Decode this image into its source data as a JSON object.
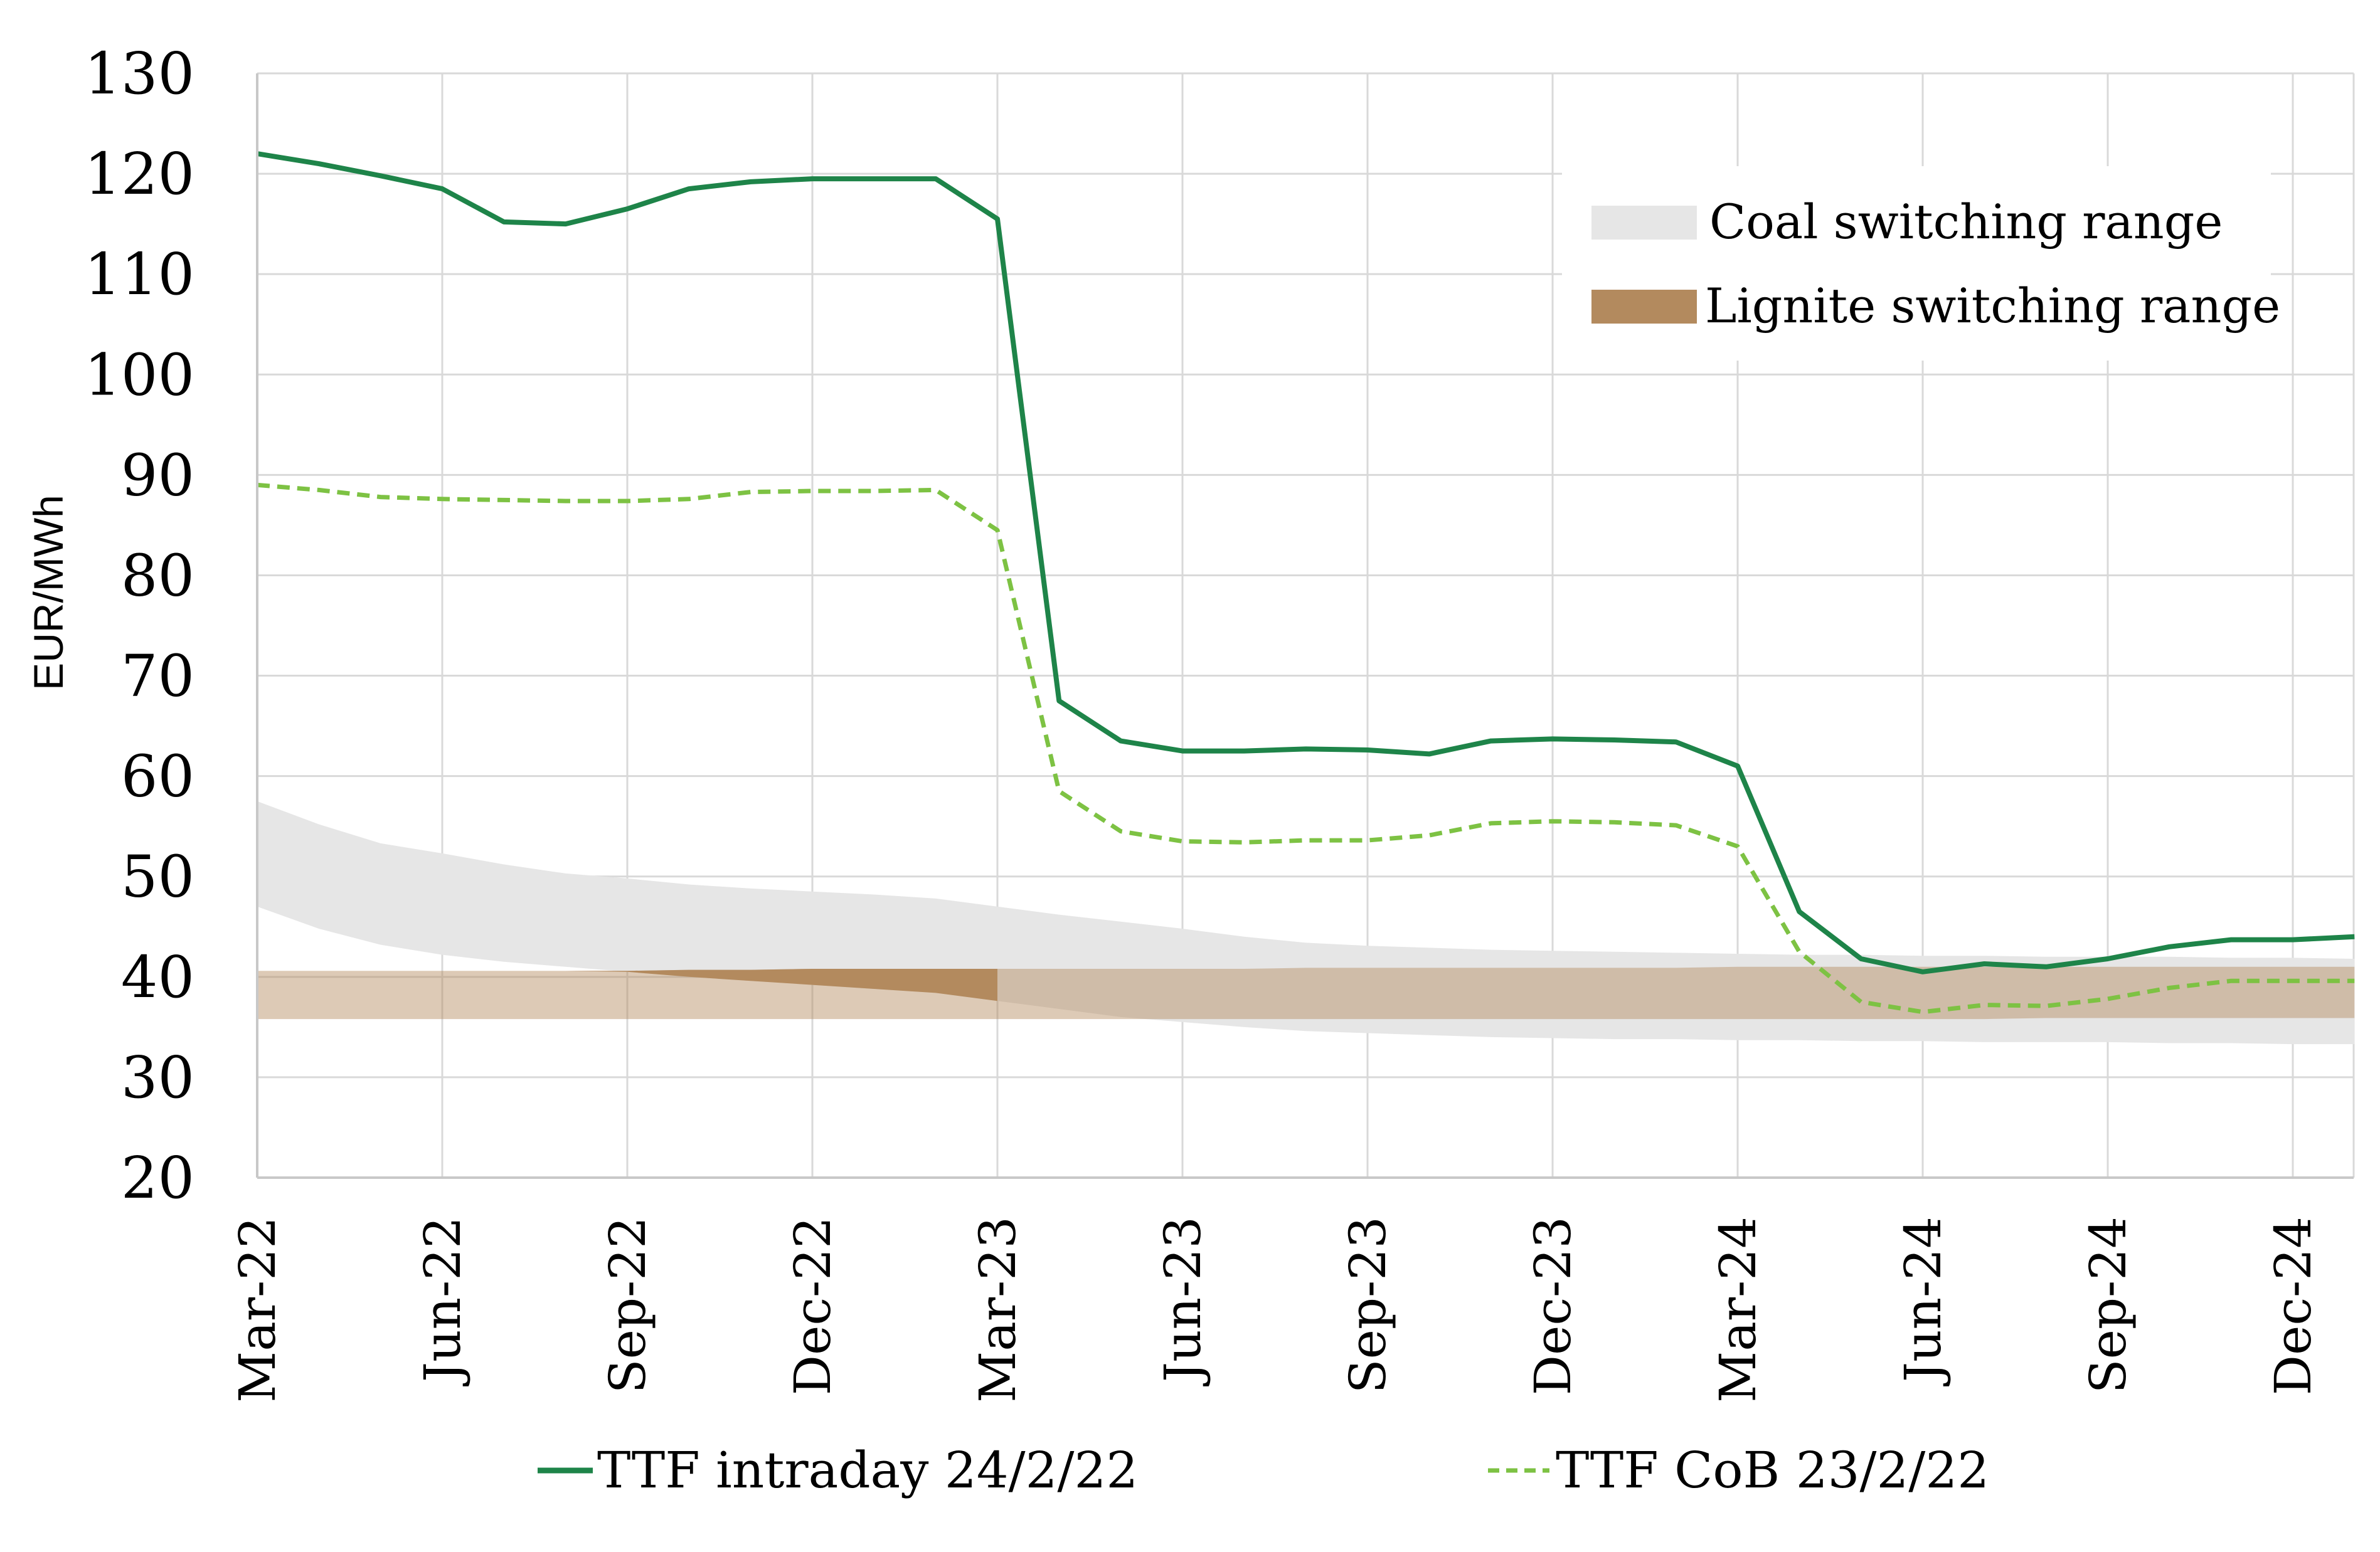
{
  "chart_data": {
    "type": "line",
    "title": "",
    "xlabel": "",
    "ylabel": "EUR/MWh",
    "ylim": [
      20,
      130
    ],
    "y_ticks": [
      "20",
      "30",
      "40",
      "50",
      "60",
      "70",
      "80",
      "90",
      "100",
      "110",
      "120",
      "130"
    ],
    "x_ticks": [
      "Mar-22",
      "Jun-22",
      "Sep-22",
      "Dec-22",
      "Mar-23",
      "Jun-23",
      "Sep-23",
      "Dec-23",
      "Mar-24",
      "Jun-24",
      "Sep-24",
      "Dec-24"
    ],
    "grid": true,
    "series": [
      {
        "name": "TTF intraday 24/2/22",
        "style": "solid",
        "color": "#1e8449",
        "values": [
          122.0,
          121.0,
          119.8,
          118.5,
          115.2,
          115.0,
          116.5,
          118.5,
          119.2,
          119.5,
          119.5,
          119.5,
          115.5,
          67.5,
          63.5,
          62.5,
          62.5,
          62.7,
          62.6,
          62.2,
          63.5,
          63.7,
          63.6,
          63.4,
          61.0,
          46.5,
          41.8,
          40.5,
          41.3,
          41.0,
          41.8,
          43.0,
          43.7,
          43.7,
          44.0
        ]
      },
      {
        "name": "TTF CoB 23/2/22",
        "style": "dashed",
        "color": "#7dc243",
        "values": [
          89.0,
          88.5,
          87.8,
          87.6,
          87.5,
          87.4,
          87.4,
          87.6,
          88.3,
          88.4,
          88.4,
          88.5,
          84.5,
          58.5,
          54.5,
          53.5,
          53.4,
          53.6,
          53.6,
          54.1,
          55.3,
          55.5,
          55.4,
          55.1,
          53.0,
          42.5,
          37.5,
          36.5,
          37.2,
          37.1,
          37.8,
          38.9,
          39.6,
          39.6,
          39.6
        ]
      }
    ],
    "bands": [
      {
        "name": "Coal switching range",
        "color": "#e6e6e6",
        "upper": [
          57.5,
          55.2,
          53.3,
          52.3,
          51.2,
          50.3,
          49.8,
          49.2,
          48.8,
          48.5,
          48.2,
          47.8,
          47.0,
          46.2,
          45.5,
          44.8,
          44.0,
          43.4,
          43.1,
          42.9,
          42.7,
          42.6,
          42.5,
          42.4,
          42.3,
          42.2,
          42.2,
          42.1,
          42.1,
          42.0,
          42.0,
          42.0,
          41.9,
          41.9,
          41.8
        ],
        "lower": [
          47.0,
          44.8,
          43.2,
          42.2,
          41.5,
          41.0,
          40.5,
          40.0,
          39.6,
          39.2,
          38.8,
          38.4,
          37.6,
          36.8,
          36.0,
          35.5,
          35.0,
          34.6,
          34.4,
          34.2,
          34.0,
          33.9,
          33.8,
          33.8,
          33.7,
          33.7,
          33.6,
          33.6,
          33.5,
          33.5,
          33.5,
          33.4,
          33.4,
          33.3,
          33.3
        ]
      },
      {
        "name": "Lignite switching range",
        "color": "#b38a5e",
        "upper": [
          40.6,
          40.6,
          40.6,
          40.6,
          40.6,
          40.6,
          40.6,
          40.7,
          40.7,
          40.8,
          40.8,
          40.8,
          40.8,
          40.8,
          40.8,
          40.8,
          40.8,
          40.9,
          40.9,
          40.9,
          40.9,
          40.9,
          40.9,
          40.9,
          41.0,
          41.0,
          41.0,
          41.0,
          41.0,
          41.0,
          41.0,
          41.0,
          41.0,
          41.0,
          41.0
        ],
        "lower": [
          35.8,
          35.8,
          35.8,
          35.8,
          35.8,
          35.8,
          35.8,
          35.8,
          35.8,
          35.8,
          35.8,
          35.8,
          35.8,
          35.8,
          35.8,
          35.8,
          35.8,
          35.8,
          35.8,
          35.8,
          35.8,
          35.8,
          35.8,
          35.8,
          35.8,
          35.8,
          35.8,
          35.8,
          35.8,
          35.9,
          35.9,
          35.9,
          35.9,
          35.9,
          35.9
        ]
      }
    ],
    "legend_top": [
      "Coal switching range",
      "Lignite switching range"
    ],
    "legend_bottom": [
      "TTF intraday 24/2/22",
      "TTF CoB 23/2/22"
    ],
    "legend_placement": "top-right and bottom"
  }
}
